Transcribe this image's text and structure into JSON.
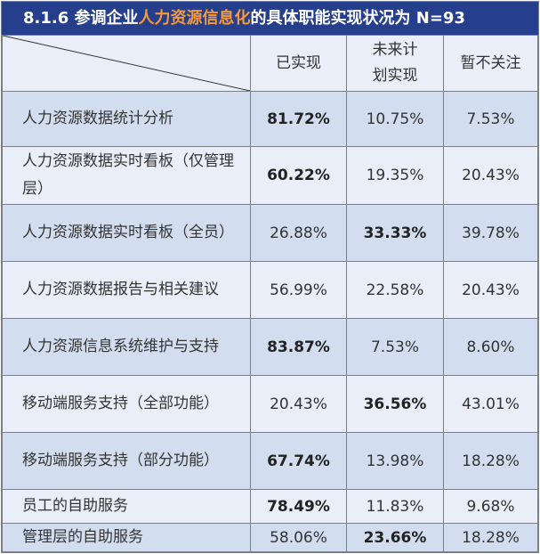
{
  "title": {
    "prefix": "8.1.6  参调企业",
    "highlight": "人力资源信息化",
    "suffix": "的具体职能实现状况为  N=93"
  },
  "colors": {
    "title_bg": "#263f8c",
    "highlight": "#f59a3b",
    "row_dark": "#d2ddef",
    "row_light": "#e9eef8"
  },
  "columns": [
    "已实现",
    "未来计划实现",
    "暂不关注"
  ],
  "column_display": [
    [
      "已实现"
    ],
    [
      "未来计",
      "划实现"
    ],
    [
      "暂不关注"
    ]
  ],
  "rows": [
    {
      "label": "人力资源数据统计分析",
      "values": [
        "81.72%",
        "10.75%",
        "7.53%"
      ],
      "bold": 0
    },
    {
      "label": "人力资源数据实时看板（仅管理层）",
      "values": [
        "60.22%",
        "19.35%",
        "20.43%"
      ],
      "bold": 0
    },
    {
      "label": "人力资源数据实时看板（全员）",
      "values": [
        "26.88%",
        "33.33%",
        "39.78%"
      ],
      "bold": 1
    },
    {
      "label": "人力资源数据报告与相关建议",
      "values": [
        "56.99%",
        "22.58%",
        "20.43%"
      ],
      "bold": -1
    },
    {
      "label": "人力资源信息系统维护与支持",
      "values": [
        "83.87%",
        "7.53%",
        "8.60%"
      ],
      "bold": 0
    },
    {
      "label": "移动端服务支持（全部功能）",
      "values": [
        "20.43%",
        "36.56%",
        "43.01%"
      ],
      "bold": 1
    },
    {
      "label": "移动端服务支持（部分功能）",
      "values": [
        "67.74%",
        "13.98%",
        "18.28%"
      ],
      "bold": 0
    },
    {
      "label": "员工的自助服务",
      "values": [
        "78.49%",
        "11.83%",
        "9.68%"
      ],
      "bold": 0
    },
    {
      "label": "管理层的自助服务",
      "values": [
        "58.06%",
        "23.66%",
        "18.28%"
      ],
      "bold": 1
    }
  ]
}
